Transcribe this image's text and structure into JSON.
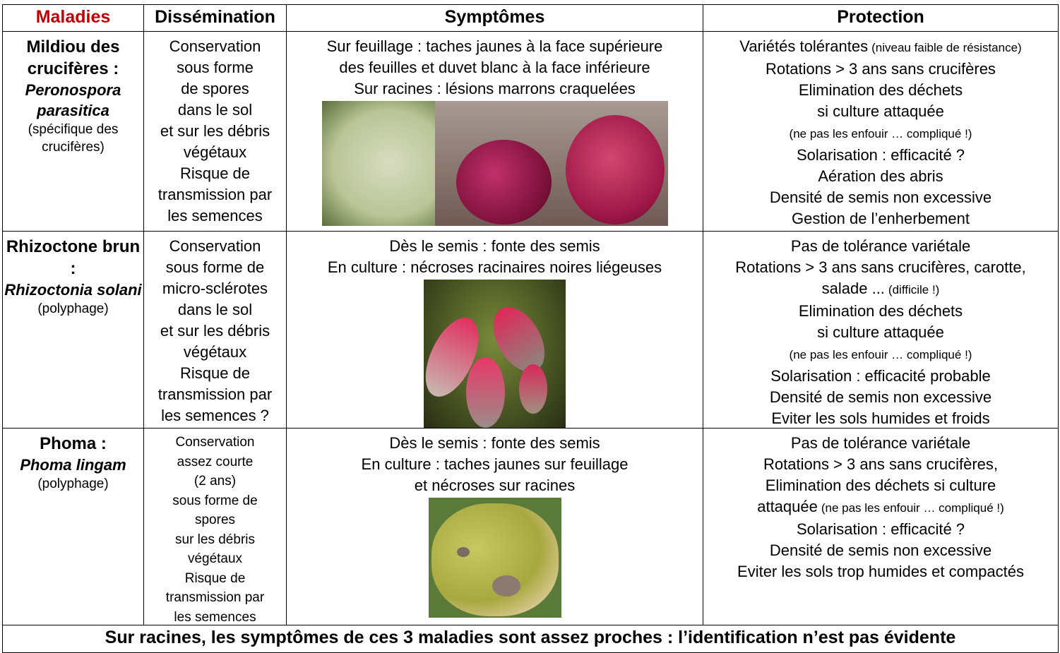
{
  "table": {
    "header": [
      "Maladies",
      "Dissémination",
      "Symptômes",
      "Protection"
    ],
    "rows": [
      {
        "disease": {
          "name": "Mildiou des crucifères :",
          "pathogen": "Peronospora parasitica",
          "host": "(spécifique des crucifères)"
        },
        "dissemination": [
          "Conservation",
          "sous forme",
          "de spores",
          "dans le sol",
          "et sur les débris",
          "végétaux",
          "Risque de",
          "transmission par",
          "les semences"
        ],
        "symptoms": [
          "Sur feuillage : taches jaunes à la face supérieure",
          "des feuilles et duvet blanc à la face inférieure",
          "Sur racines : lésions marrons craquelées"
        ],
        "protection": [
          {
            "text": "Variétés tolérantes",
            "note": "(niveau faible de résistance)"
          },
          {
            "text": "Rotations > 3 ans sans crucifères"
          },
          {
            "text": "Elimination des déchets"
          },
          {
            "text": "si culture attaquée"
          },
          {
            "note": "(ne pas les enfouir … compliqué !)"
          },
          {
            "text": "Solarisation : efficacité ?"
          },
          {
            "text": "Aération des abris"
          },
          {
            "text": "Densité de semis non excessive"
          },
          {
            "text": "Gestion de l’enherbement"
          }
        ]
      },
      {
        "disease": {
          "name": "Rhizoctone brun :",
          "pathogen": "Rhizoctonia solani",
          "host": "(polyphage)"
        },
        "dissemination": [
          "Conservation",
          "sous forme de",
          "micro-sclérotes",
          "dans le sol",
          "et sur les débris",
          "végétaux",
          "Risque de",
          "transmission par",
          "les semences ?"
        ],
        "symptoms": [
          "Dès le semis : fonte des semis",
          "En culture : nécroses racinaires noires liégeuses"
        ],
        "protection": [
          {
            "text": "Pas de tolérance variétale"
          },
          {
            "text": "Rotations > 3 ans sans crucifères, carotte,"
          },
          {
            "text": "salade ...",
            "note": "(difficile !)"
          },
          {
            "text": "Elimination des déchets"
          },
          {
            "text": "si culture attaquée"
          },
          {
            "note": "(ne pas les enfouir … compliqué !)"
          },
          {
            "text": "Solarisation : efficacité probable"
          },
          {
            "text": "Densité de semis non excessive"
          },
          {
            "text": "Eviter les sols humides et froids"
          }
        ]
      },
      {
        "disease": {
          "name": "Phoma :",
          "pathogen": "Phoma lingam",
          "host": "(polyphage)"
        },
        "dissemination": [
          "Conservation",
          "assez courte",
          "(2 ans)",
          "sous forme de",
          "spores",
          "sur les débris",
          "végétaux",
          "Risque de",
          "transmission par",
          "les semences"
        ],
        "symptoms": [
          "Dès le semis : fonte des semis",
          "En culture : taches jaunes sur feuillage",
          "et nécroses sur racines"
        ],
        "protection": [
          {
            "text": "Pas de tolérance variétale"
          },
          {
            "text": "Rotations > 3 ans sans crucifères,"
          },
          {
            "text": "Elimination des déchets si culture"
          },
          {
            "text": "attaquée",
            "note": "(ne pas les enfouir … compliqué !)"
          },
          {
            "text": "Solarisation : efficacité ?"
          },
          {
            "text": "Densité de semis non excessive"
          },
          {
            "text": "Eviter les sols trop humides et compactés"
          }
        ]
      }
    ],
    "footer": "Sur racines, les symptômes de ces 3 maladies sont assez proches : l’identification n’est pas évidente"
  }
}
